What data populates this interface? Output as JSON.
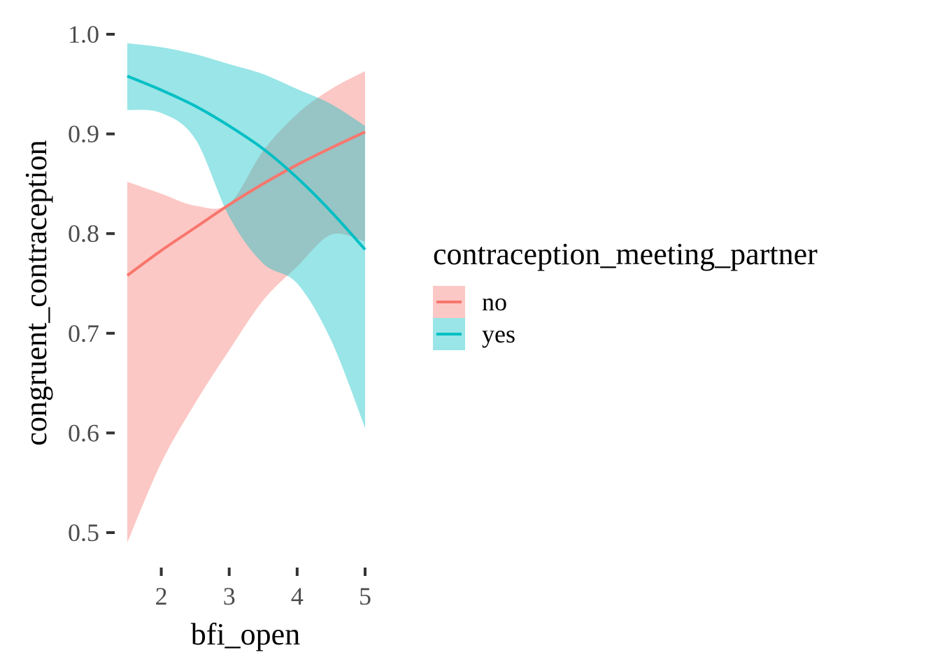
{
  "chart_data": {
    "type": "line",
    "xlabel": "bfi_open",
    "ylabel": "congruent_contraception",
    "xlim": [
      1.5,
      5.0
    ],
    "ylim": [
      0.49,
      0.99
    ],
    "x_ticks": [
      2,
      3,
      4,
      5
    ],
    "x_tick_labels": [
      "2",
      "3",
      "4",
      "5"
    ],
    "y_ticks": [
      0.5,
      0.6,
      0.7,
      0.8,
      0.9,
      1.0
    ],
    "y_tick_labels": [
      "0.5",
      "0.6",
      "0.7",
      "0.8",
      "0.9",
      "1.0"
    ],
    "grid": false,
    "legend": {
      "title": "contraception_meeting_partner",
      "position": "right"
    },
    "series": [
      {
        "name": "no",
        "color": "#F8766D",
        "x": [
          1.5,
          2.0,
          2.5,
          3.0,
          3.5,
          4.0,
          4.5,
          5.0
        ],
        "y": [
          0.758,
          0.783,
          0.806,
          0.829,
          0.85,
          0.869,
          0.886,
          0.902
        ],
        "lower": [
          0.49,
          0.57,
          0.63,
          0.683,
          0.733,
          0.767,
          0.799,
          0.792
        ],
        "upper": [
          0.852,
          0.84,
          0.828,
          0.83,
          0.883,
          0.92,
          0.945,
          0.963
        ]
      },
      {
        "name": "yes",
        "color": "#00BFC4",
        "x": [
          1.5,
          2.0,
          2.5,
          3.0,
          3.5,
          4.0,
          4.5,
          5.0
        ],
        "y": [
          0.958,
          0.944,
          0.928,
          0.908,
          0.885,
          0.856,
          0.822,
          0.784
        ],
        "lower": [
          0.924,
          0.921,
          0.92,
          0.92,
          0.927,
          0.935,
          0.92,
          0.908
        ],
        "upper": [
          0.991,
          0.987,
          0.98,
          0.97,
          0.96,
          0.945,
          0.93,
          0.908
        ],
        "band_lower": [
          0.924,
          0.921,
          0.895,
          0.817,
          0.77,
          0.75,
          0.693,
          0.605
        ]
      }
    ]
  }
}
